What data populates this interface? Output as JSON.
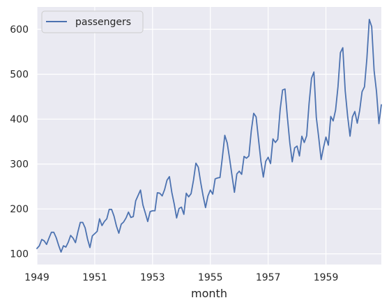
{
  "chart_data": {
    "type": "line",
    "title": "",
    "xlabel": "month",
    "ylabel": "",
    "x_ticks": [
      "1949",
      "1951",
      "1953",
      "1955",
      "1957",
      "1959"
    ],
    "y_ticks": [
      100,
      200,
      300,
      400,
      500,
      600
    ],
    "x_range": [
      1949.0,
      1960.9167
    ],
    "y_range": [
      76.2,
      649.8
    ],
    "grid": true,
    "legend_position": "top-left",
    "series": [
      {
        "name": "passengers",
        "color": "#4c72b0",
        "x_start": "1949-01",
        "x_end": "1960-12",
        "frequency": "monthly",
        "values": [
          112,
          118,
          132,
          129,
          121,
          135,
          148,
          148,
          136,
          119,
          104,
          118,
          115,
          126,
          141,
          135,
          125,
          149,
          170,
          170,
          158,
          133,
          114,
          140,
          145,
          150,
          178,
          163,
          172,
          178,
          199,
          199,
          184,
          162,
          146,
          166,
          171,
          180,
          193,
          181,
          183,
          218,
          230,
          242,
          209,
          191,
          172,
          194,
          196,
          196,
          236,
          235,
          229,
          243,
          264,
          272,
          237,
          211,
          180,
          201,
          204,
          188,
          235,
          227,
          234,
          264,
          302,
          293,
          259,
          229,
          203,
          229,
          242,
          233,
          267,
          269,
          270,
          315,
          364,
          347,
          312,
          274,
          237,
          278,
          284,
          277,
          317,
          313,
          318,
          374,
          413,
          405,
          355,
          306,
          271,
          306,
          315,
          301,
          356,
          348,
          355,
          422,
          465,
          467,
          404,
          347,
          305,
          336,
          340,
          318,
          362,
          348,
          363,
          435,
          491,
          505,
          404,
          359,
          310,
          337,
          360,
          342,
          406,
          396,
          420,
          472,
          548,
          559,
          463,
          407,
          362,
          405,
          417,
          391,
          419,
          461,
          472,
          535,
          622,
          606,
          508,
          461,
          390,
          432
        ]
      }
    ]
  }
}
